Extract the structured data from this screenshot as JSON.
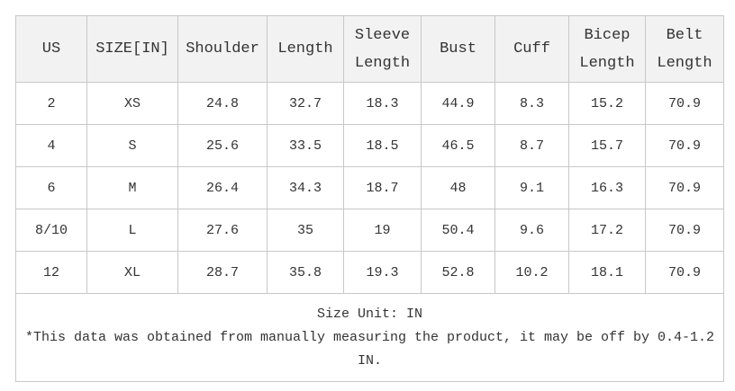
{
  "headers": [
    "US",
    "SIZE[IN]",
    "Shoulder",
    "Length",
    "Sleeve Length",
    "Bust",
    "Cuff",
    "Bicep Length",
    "Belt Length"
  ],
  "rows": [
    [
      "2",
      "XS",
      "24.8",
      "32.7",
      "18.3",
      "44.9",
      "8.3",
      "15.2",
      "70.9"
    ],
    [
      "4",
      "S",
      "25.6",
      "33.5",
      "18.5",
      "46.5",
      "8.7",
      "15.7",
      "70.9"
    ],
    [
      "6",
      "M",
      "26.4",
      "34.3",
      "18.7",
      "48",
      "9.1",
      "16.3",
      "70.9"
    ],
    [
      "8/10",
      "L",
      "27.6",
      "35",
      "19",
      "50.4",
      "9.6",
      "17.2",
      "70.9"
    ],
    [
      "12",
      "XL",
      "28.7",
      "35.8",
      "19.3",
      "52.8",
      "10.2",
      "18.1",
      "70.9"
    ]
  ],
  "footer": {
    "unit": "Size Unit: IN",
    "note": "*This data was obtained from manually measuring the product, it may be off by 0.4-1.2 IN."
  },
  "colors": {
    "header_bg": "#f2f2f2",
    "border": "#c8c8c8",
    "text": "#333333"
  }
}
